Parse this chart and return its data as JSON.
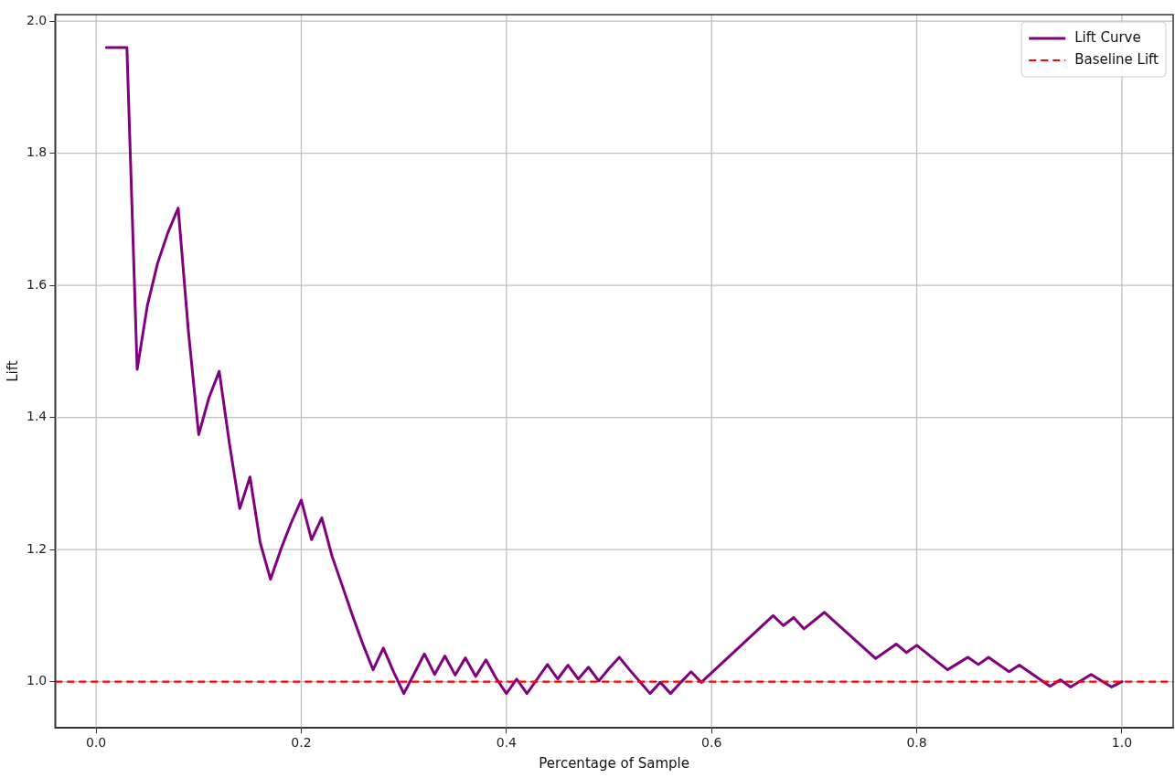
{
  "chart_data": {
    "type": "line",
    "xlabel": "Percentage of Sample",
    "ylabel": "Lift",
    "xlim": [
      -0.04,
      1.05
    ],
    "ylim": [
      0.93,
      2.01
    ],
    "xticks": [
      {
        "value": 0,
        "label": "0.0"
      },
      {
        "value": 0.2,
        "label": "0.2"
      },
      {
        "value": 0.4,
        "label": "0.4"
      },
      {
        "value": 0.6,
        "label": "0.6"
      },
      {
        "value": 0.8,
        "label": "0.8"
      },
      {
        "value": 1,
        "label": "1.0"
      }
    ],
    "yticks": [
      {
        "value": 1,
        "label": "1.0"
      },
      {
        "value": 1.2,
        "label": "1.2"
      },
      {
        "value": 1.4,
        "label": "1.4"
      },
      {
        "value": 1.6,
        "label": "1.6"
      },
      {
        "value": 1.8,
        "label": "1.8"
      },
      {
        "value": 2,
        "label": "2.0"
      }
    ],
    "grid": true,
    "legend": "top right",
    "marker": "none",
    "line_style": "solid",
    "series": [
      {
        "name": "Lift Curve",
        "color": "#800080",
        "x": [
          0.01,
          0.02,
          0.03,
          0.04,
          0.05,
          0.06,
          0.07,
          0.08,
          0.09,
          0.1,
          0.11,
          0.12,
          0.13,
          0.14,
          0.15,
          0.16,
          0.17,
          0.18,
          0.19,
          0.2,
          0.21,
          0.22,
          0.23,
          0.24,
          0.25,
          0.26,
          0.27,
          0.28,
          0.29,
          0.3,
          0.31,
          0.32,
          0.33,
          0.34,
          0.35,
          0.36,
          0.37,
          0.38,
          0.39,
          0.4,
          0.41,
          0.42,
          0.43,
          0.44,
          0.45,
          0.46,
          0.47,
          0.48,
          0.49,
          0.5,
          0.51,
          0.52,
          0.53,
          0.54,
          0.55,
          0.56,
          0.57,
          0.58,
          0.59,
          0.66,
          0.67,
          0.68,
          0.69,
          0.71,
          0.76,
          0.78,
          0.79,
          0.8,
          0.83,
          0.85,
          0.86,
          0.87,
          0.89,
          0.9,
          0.93,
          0.94,
          0.95,
          0.97,
          0.99,
          1.0
        ],
        "values": [
          1.96,
          1.96,
          1.96,
          1.473,
          1.57,
          1.634,
          1.68,
          1.717,
          1.53,
          1.374,
          1.43,
          1.47,
          1.36,
          1.262,
          1.31,
          1.21,
          1.155,
          1.2,
          1.24,
          1.275,
          1.215,
          1.248,
          1.19,
          1.145,
          1.1,
          1.057,
          1.018,
          1.051,
          1.015,
          0.982,
          1.012,
          1.042,
          1.011,
          1.039,
          1.01,
          1.036,
          1.008,
          1.033,
          1.005,
          0.982,
          1.004,
          0.982,
          1.004,
          1.026,
          1.004,
          1.025,
          1.004,
          1.022,
          1.001,
          1.02,
          1.037,
          1.018,
          1.0,
          0.982,
          0.999,
          0.982,
          0.999,
          1.015,
          0.999,
          1.1,
          1.085,
          1.097,
          1.08,
          1.105,
          1.035,
          1.057,
          1.044,
          1.055,
          1.018,
          1.037,
          1.026,
          1.037,
          1.015,
          1.025,
          0.993,
          1.003,
          0.992,
          1.011,
          0.992,
          1.0
        ]
      }
    ],
    "ref_lines": [
      {
        "axis": "y",
        "value": 1,
        "label": "Baseline Lift",
        "color": "#ff0000",
        "line_style": "dashed"
      }
    ]
  }
}
